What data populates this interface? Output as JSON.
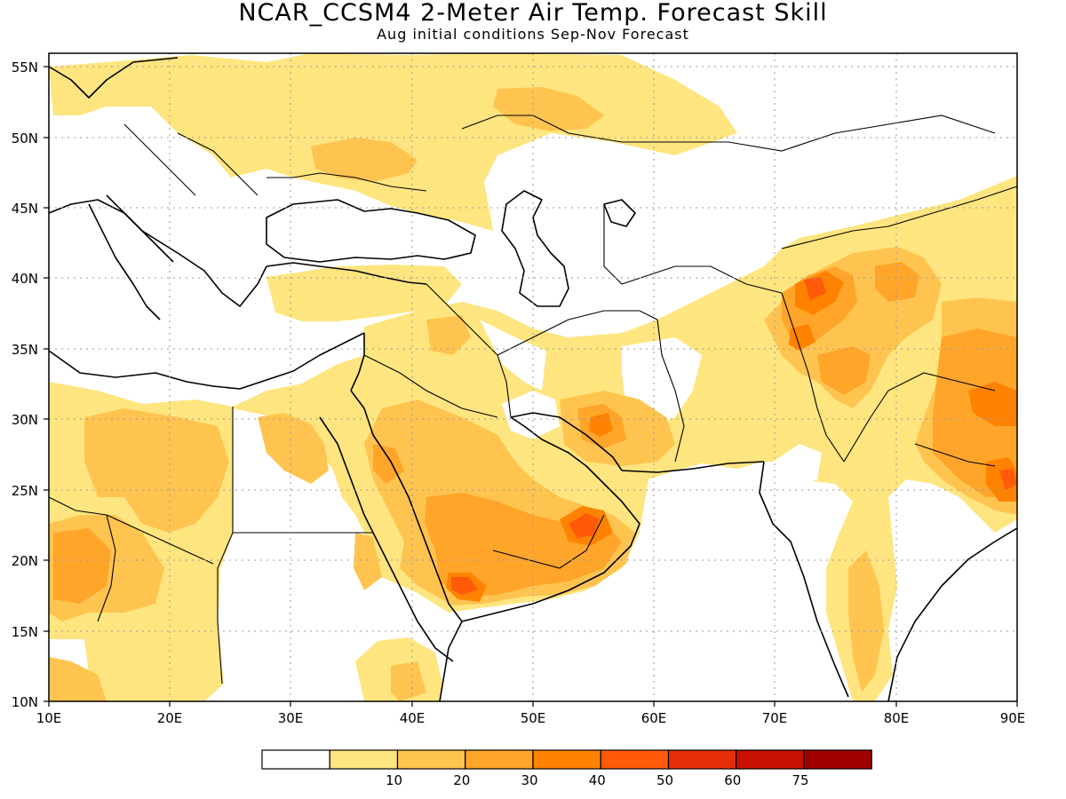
{
  "title": "NCAR_CCSM4 2-Meter Air Temp. Forecast Skill",
  "subtitle": "Aug initial conditions  Sep-Nov Forecast",
  "map": {
    "lon_range": [
      10,
      90
    ],
    "lat_range": [
      10,
      56
    ],
    "grid": "dotted",
    "lat_labels": [
      "10N",
      "15N",
      "20N",
      "25N",
      "30N",
      "35N",
      "40N",
      "45N",
      "50N",
      "55N"
    ],
    "lon_labels": [
      "10E",
      "20E",
      "30E",
      "40E",
      "50E",
      "60E",
      "70E",
      "80E",
      "90E"
    ]
  },
  "legend": {
    "bins": [
      {
        "color": "#ffffff"
      },
      {
        "color": "#ffe57f",
        "label": "10"
      },
      {
        "color": "#ffc450",
        "label": "20"
      },
      {
        "color": "#ffa52a",
        "label": "30"
      },
      {
        "color": "#ff8200",
        "label": "40"
      },
      {
        "color": "#ff5a0a",
        "label": "50"
      },
      {
        "color": "#e62d0a",
        "label": "60"
      },
      {
        "color": "#c81000",
        "label": "75"
      },
      {
        "color": "#a00000"
      }
    ]
  }
}
